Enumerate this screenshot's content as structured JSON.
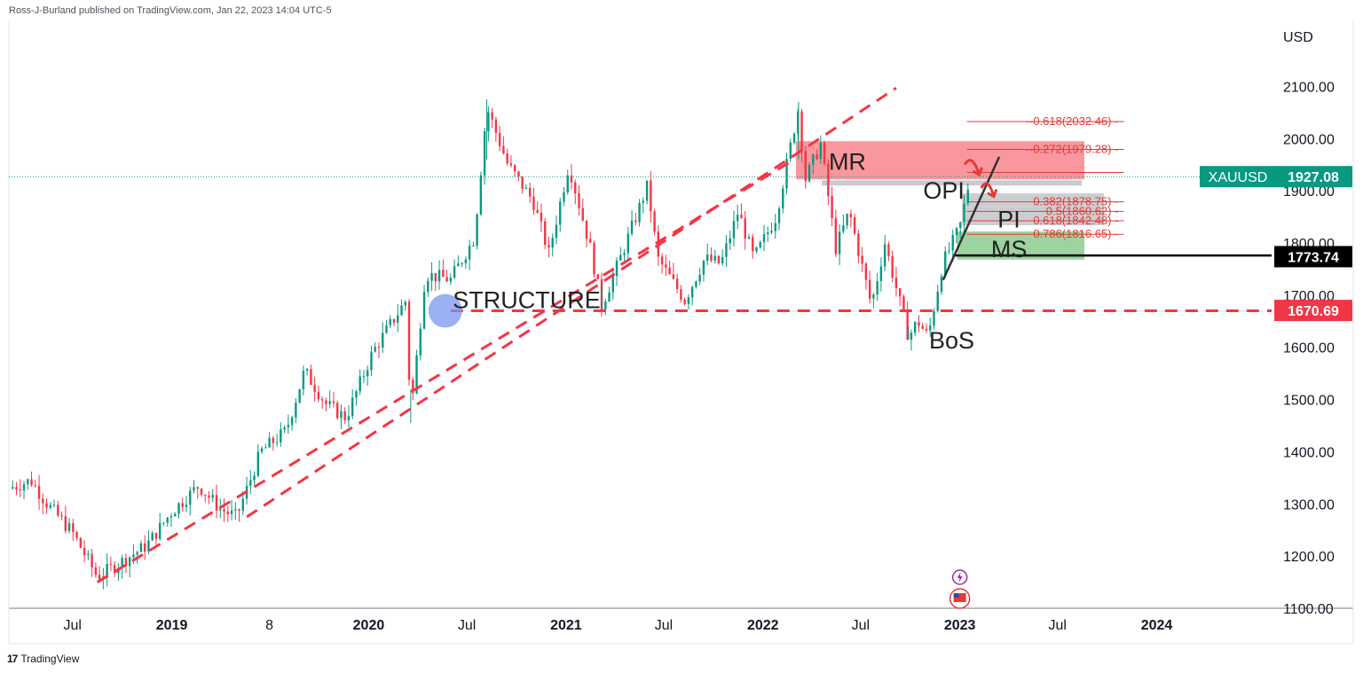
{
  "header": {
    "publisher": "Ross-J-Burland published on TradingView.com, Jan 22, 2023 14:04 UTC-5"
  },
  "footer": {
    "brand": "TradingView",
    "logo": "17"
  },
  "chart_data": {
    "type": "candlestick",
    "symbol": "XAUUSD",
    "currency": "USD",
    "ylim": [
      1100,
      2200
    ],
    "y_ticks": [
      "2100.00",
      "2000.00",
      "1900.00",
      "1800.00",
      "1700.00",
      "1600.00",
      "1500.00",
      "1400.00",
      "1300.00",
      "1200.00",
      "1100.00"
    ],
    "y_tick_values": [
      2100,
      2000,
      1900,
      1800,
      1700,
      1600,
      1500,
      1400,
      1300,
      1200,
      1100
    ],
    "x_range": [
      "2018-03-05",
      "2024-08-01"
    ],
    "x_ticks": [
      {
        "label": "Jul",
        "date": "2018-07-01",
        "bold": false
      },
      {
        "label": "2019",
        "date": "2019-01-01",
        "bold": true
      },
      {
        "label": "8",
        "date": "2019-07-01",
        "bold": false
      },
      {
        "label": "2020",
        "date": "2020-01-01",
        "bold": true
      },
      {
        "label": "Jul",
        "date": "2020-07-01",
        "bold": false
      },
      {
        "label": "2021",
        "date": "2021-01-01",
        "bold": true
      },
      {
        "label": "Jul",
        "date": "2021-07-01",
        "bold": false
      },
      {
        "label": "2022",
        "date": "2022-01-01",
        "bold": true
      },
      {
        "label": "Jul",
        "date": "2022-07-01",
        "bold": false
      },
      {
        "label": "2023",
        "date": "2023-01-01",
        "bold": true
      },
      {
        "label": "Jul",
        "date": "2023-07-01",
        "bold": false
      },
      {
        "label": "2024",
        "date": "2024-01-01",
        "bold": true
      }
    ],
    "price_path": [
      [
        "2018-03-05",
        1330
      ],
      [
        "2018-04-15",
        1345
      ],
      [
        "2018-05-15",
        1300
      ],
      [
        "2018-07-01",
        1245
      ],
      [
        "2018-08-16",
        1160
      ],
      [
        "2018-10-01",
        1190
      ],
      [
        "2018-11-15",
        1220
      ],
      [
        "2019-01-01",
        1285
      ],
      [
        "2019-02-20",
        1335
      ],
      [
        "2019-04-01",
        1290
      ],
      [
        "2019-05-01",
        1275
      ],
      [
        "2019-06-15",
        1400
      ],
      [
        "2019-08-01",
        1440
      ],
      [
        "2019-09-04",
        1555
      ],
      [
        "2019-10-15",
        1490
      ],
      [
        "2019-11-20",
        1465
      ],
      [
        "2020-01-08",
        1590
      ],
      [
        "2020-03-10",
        1690
      ],
      [
        "2020-03-19",
        1470
      ],
      [
        "2020-04-15",
        1740
      ],
      [
        "2020-06-01",
        1730
      ],
      [
        "2020-07-15",
        1810
      ],
      [
        "2020-08-07",
        2060
      ],
      [
        "2020-09-15",
        1950
      ],
      [
        "2020-11-01",
        1880
      ],
      [
        "2020-11-30",
        1780
      ],
      [
        "2021-01-06",
        1950
      ],
      [
        "2021-02-15",
        1790
      ],
      [
        "2021-03-08",
        1680
      ],
      [
        "2021-04-15",
        1780
      ],
      [
        "2021-06-01",
        1910
      ],
      [
        "2021-06-20",
        1770
      ],
      [
        "2021-08-09",
        1690
      ],
      [
        "2021-09-15",
        1770
      ],
      [
        "2021-10-15",
        1760
      ],
      [
        "2021-11-16",
        1860
      ],
      [
        "2021-12-15",
        1770
      ],
      [
        "2022-01-25",
        1850
      ],
      [
        "2022-03-08",
        2060
      ],
      [
        "2022-03-20",
        1920
      ],
      [
        "2022-04-18",
        1990
      ],
      [
        "2022-05-16",
        1790
      ],
      [
        "2022-06-10",
        1860
      ],
      [
        "2022-07-21",
        1680
      ],
      [
        "2022-08-15",
        1800
      ],
      [
        "2022-09-28",
        1620
      ],
      [
        "2022-10-15",
        1650
      ],
      [
        "2022-11-03",
        1620
      ],
      [
        "2022-11-30",
        1760
      ],
      [
        "2023-01-01",
        1830
      ],
      [
        "2023-01-20",
        1927
      ]
    ],
    "trendlines": [
      {
        "from": [
          "2018-08-16",
          1150
        ],
        "to": [
          "2022-02-20",
          1955
        ],
        "style": "dashed",
        "color": "#f23645"
      },
      {
        "from": [
          "2019-05-20",
          1275
        ],
        "to": [
          "2022-09-05",
          2097
        ],
        "style": "dashed",
        "color": "#f23645"
      },
      {
        "from": [
          "2020-06-01",
          1670
        ],
        "to": [
          "2024-08-01",
          1670
        ],
        "style": "dashed",
        "color": "#f23645"
      },
      {
        "from": [
          "2022-12-20",
          1776
        ],
        "to": [
          "2024-08-01",
          1776
        ],
        "style": "solid",
        "color": "#000000"
      },
      {
        "from": [
          "2022-12-01",
          1729
        ],
        "to": [
          "2023-03-15",
          1965
        ],
        "style": "solid",
        "color": "#333333"
      }
    ],
    "zones": [
      {
        "name": "MR",
        "from": "2022-03-03",
        "to": "2023-08-20",
        "y1": 1922,
        "y2": 1995,
        "color": "#f56f78",
        "opacity": 0.72
      },
      {
        "name": "OPI-band",
        "from": "2022-04-20",
        "to": "2023-08-15",
        "y1": 1910,
        "y2": 1920,
        "color": "#b0b3b8",
        "opacity": 0.7
      },
      {
        "name": "PI",
        "from": "2023-01-05",
        "to": "2023-09-25",
        "y1": 1834,
        "y2": 1895,
        "color": "#b0b3b8",
        "opacity": 0.65
      },
      {
        "name": "MS",
        "from": "2022-12-27",
        "to": "2023-08-20",
        "y1": 1768,
        "y2": 1822,
        "color": "#7cc47f",
        "opacity": 0.75
      }
    ],
    "fib_levels": [
      {
        "label": "-0.618(2032.46)",
        "value": 2032.46
      },
      {
        "label": "-0.272(1979.28)",
        "value": 1979.28
      },
      {
        "label": "0",
        "value": 1935
      },
      {
        "label": "0.382(1878.75)",
        "value": 1878.75
      },
      {
        "label": "0.5(1860.62)",
        "value": 1860.62
      },
      {
        "label": "0.618(1842.48)",
        "value": 1842.48
      },
      {
        "label": "0.786(1816.65)",
        "value": 1816.65
      }
    ],
    "annotations": [
      {
        "text": "STRUCTURE",
        "date": "2020-06-05",
        "value": 1675
      },
      {
        "text": "MR",
        "date": "2022-05-03",
        "value": 1940
      },
      {
        "text": "OPI",
        "date": "2022-10-25",
        "value": 1885
      },
      {
        "text": "PI",
        "date": "2023-03-12",
        "value": 1830
      },
      {
        "text": "MS",
        "date": "2023-02-28",
        "value": 1773
      },
      {
        "text": "BoS",
        "date": "2022-11-05",
        "value": 1598
      }
    ],
    "price_labels": [
      {
        "text": "XAUUSD",
        "value_text": "1927.08",
        "value": 1927.08,
        "color": "#089981"
      },
      {
        "text": "",
        "value_text": "1773.74",
        "value": 1773.74,
        "color": "#000000"
      },
      {
        "text": "",
        "value_text": "1670.69",
        "value": 1670.69,
        "color": "#f23645"
      }
    ]
  }
}
